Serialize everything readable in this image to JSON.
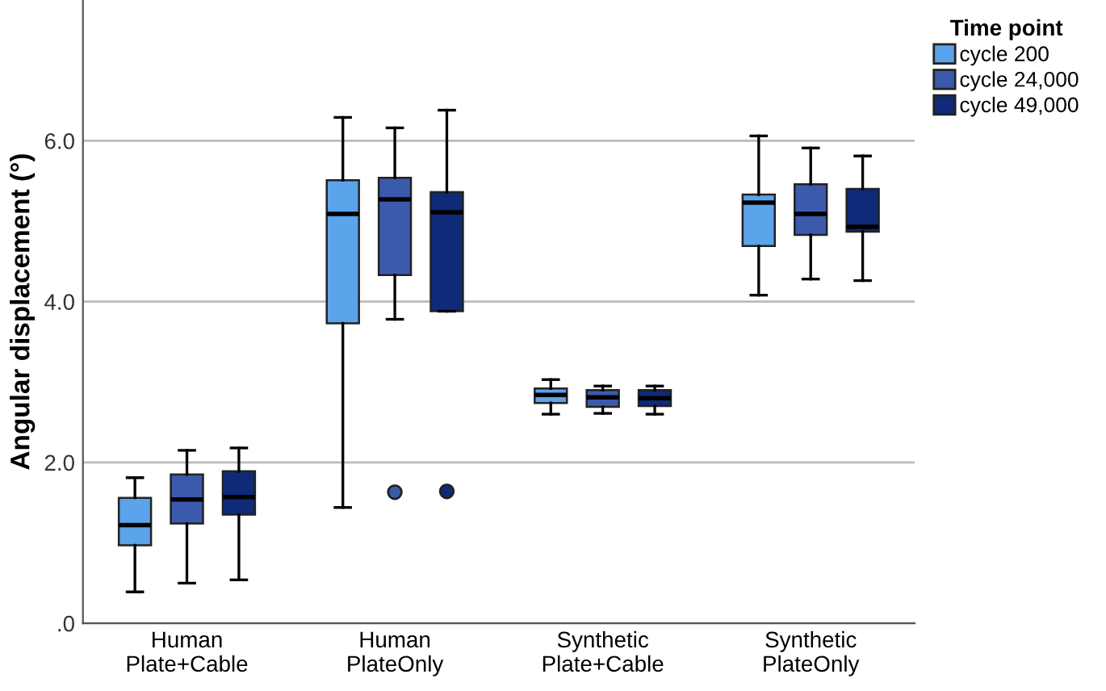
{
  "chart_data": {
    "type": "box",
    "ylabel": "Angular displacement (°)",
    "legend_title": "Time point",
    "legend": "top right",
    "grid": "y",
    "categories": [
      "Human\nPlate+Cable",
      "Human\nPlateOnly",
      "Synthetic\nPlate+Cable",
      "Synthetic\nPlateOnly"
    ],
    "ylim": [
      0,
      7.75
    ],
    "yticks": [
      {
        "value": 0,
        "label": ".0"
      },
      {
        "value": 2,
        "label": "2.0"
      },
      {
        "value": 4,
        "label": "4.0"
      },
      {
        "value": 6,
        "label": "6.0"
      }
    ],
    "series": [
      {
        "name": "cycle 200",
        "color": "#5ba3ea",
        "boxes": [
          {
            "low": 0.39,
            "q1": 0.97,
            "median": 1.22,
            "q3": 1.56,
            "high": 1.81
          },
          {
            "low": 1.44,
            "q1": 3.73,
            "median": 5.09,
            "q3": 5.51,
            "high": 6.29
          },
          {
            "low": 2.6,
            "q1": 2.74,
            "median": 2.84,
            "q3": 2.92,
            "high": 3.03
          },
          {
            "low": 4.08,
            "q1": 4.69,
            "median": 5.23,
            "q3": 5.33,
            "high": 6.06
          }
        ]
      },
      {
        "name": "cycle 24,000",
        "color": "#3c5aad",
        "boxes": [
          {
            "low": 0.5,
            "q1": 1.24,
            "median": 1.54,
            "q3": 1.85,
            "high": 2.15
          },
          {
            "low": 3.78,
            "q1": 4.33,
            "median": 5.27,
            "q3": 5.54,
            "high": 6.16,
            "outliers": [
              1.63
            ]
          },
          {
            "low": 2.61,
            "q1": 2.69,
            "median": 2.81,
            "q3": 2.9,
            "high": 2.95
          },
          {
            "low": 4.28,
            "q1": 4.83,
            "median": 5.09,
            "q3": 5.46,
            "high": 5.91
          }
        ]
      },
      {
        "name": "cycle 49,000",
        "color": "#0e2a78",
        "boxes": [
          {
            "low": 0.54,
            "q1": 1.35,
            "median": 1.57,
            "q3": 1.89,
            "high": 2.18
          },
          {
            "low": 3.88,
            "q1": 3.88,
            "median": 5.11,
            "q3": 5.36,
            "high": 6.38,
            "outliers": [
              1.64
            ]
          },
          {
            "low": 2.6,
            "q1": 2.7,
            "median": 2.8,
            "q3": 2.9,
            "high": 2.95
          },
          {
            "low": 4.26,
            "q1": 4.87,
            "median": 4.93,
            "q3": 5.4,
            "high": 5.81
          }
        ]
      }
    ]
  }
}
